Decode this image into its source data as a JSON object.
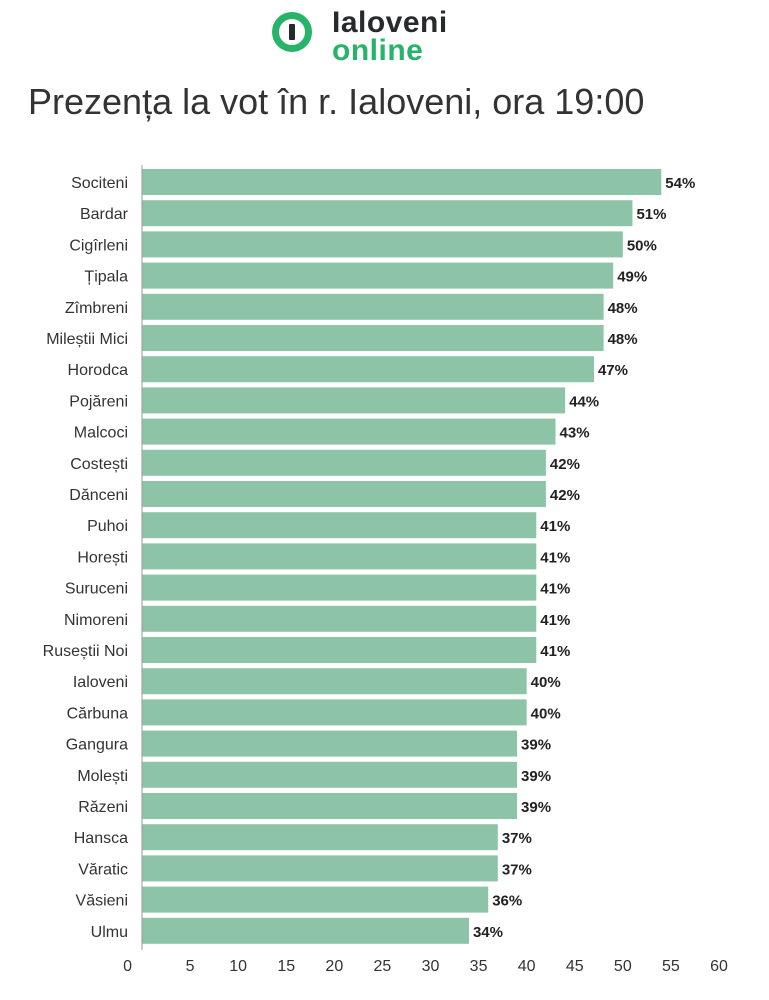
{
  "logo": {
    "word1": "Ialoveni",
    "word2": "online",
    "brand_color": "#27b36a"
  },
  "title": "Prezența la vot în r. Ialoveni, ora 19:00",
  "chart_data": {
    "type": "bar",
    "orientation": "horizontal",
    "title": "Prezența la vot în r. Ialoveni, ora 19:00",
    "xlabel": "",
    "ylabel": "",
    "xlim": [
      0,
      60
    ],
    "x_ticks": [
      0,
      5,
      10,
      15,
      20,
      25,
      30,
      35,
      40,
      45,
      50,
      55,
      60
    ],
    "grid": false,
    "bar_color": "#8dc3a6",
    "categories": [
      "Sociteni",
      "Bardar",
      "Cigîrleni",
      "Țipala",
      "Zîmbreni",
      "Mileștii Mici",
      "Horodca",
      "Pojăreni",
      "Malcoci",
      "Costești",
      "Dănceni",
      "Puhoi",
      "Horești",
      "Suruceni",
      "Nimoreni",
      "Ruseștii Noi",
      "Ialoveni",
      "Cărbuna",
      "Gangura",
      "Molești",
      "Răzeni",
      "Hansca",
      "Văratic",
      "Văsieni",
      "Ulmu"
    ],
    "values": [
      54,
      51,
      50,
      49,
      48,
      48,
      47,
      44,
      43,
      42,
      42,
      41,
      41,
      41,
      41,
      41,
      40,
      40,
      39,
      39,
      39,
      37,
      37,
      36,
      34
    ],
    "value_labels": [
      "54%",
      "51%",
      "50%",
      "49%",
      "48%",
      "48%",
      "47%",
      "44%",
      "43%",
      "42%",
      "42%",
      "41%",
      "41%",
      "41%",
      "41%",
      "41%",
      "40%",
      "40%",
      "39%",
      "39%",
      "39%",
      "37%",
      "37%",
      "36%",
      "34%"
    ]
  }
}
